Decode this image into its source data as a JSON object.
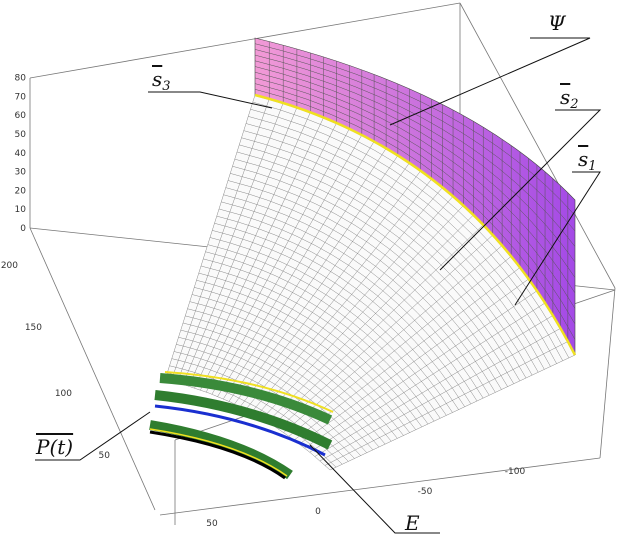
{
  "labels": {
    "psi": "Ψ",
    "s3": {
      "base": "s",
      "sub": "3"
    },
    "s2": {
      "base": "s",
      "sub": "2"
    },
    "s1": {
      "base": "s",
      "sub": "1"
    },
    "p": "P(t)",
    "e": "E"
  },
  "axes": {
    "vertical": [
      "0",
      "10",
      "20",
      "30",
      "40",
      "50",
      "60",
      "70",
      "80"
    ],
    "depth": [
      "50",
      "100",
      "150",
      "200"
    ],
    "bottom": [
      "50",
      "0",
      "-50",
      "-100"
    ]
  }
}
